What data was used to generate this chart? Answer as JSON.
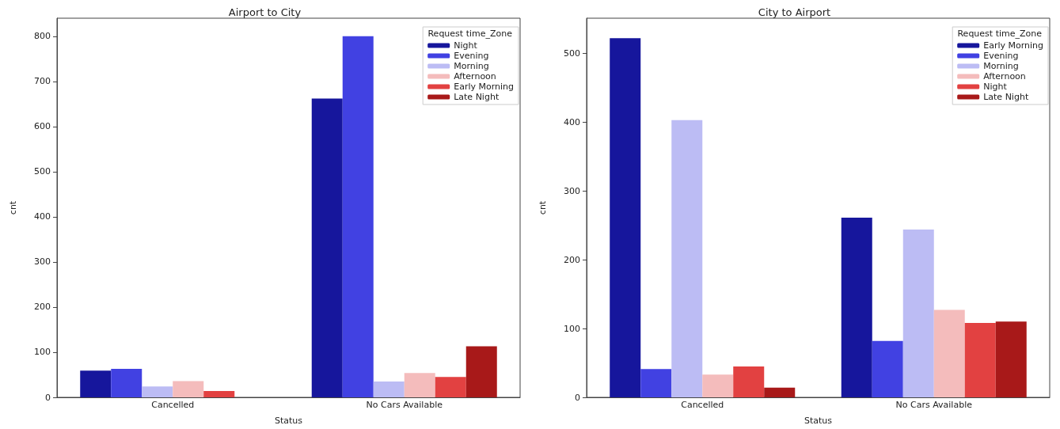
{
  "chart_data": [
    {
      "type": "bar",
      "title": "Airport to City",
      "xlabel": "Status",
      "ylabel": "cnt",
      "legend_title": "Request time_Zone",
      "categories": [
        "Cancelled",
        "No Cars Available"
      ],
      "ylim": [
        0,
        840
      ],
      "yticks": [
        0,
        100,
        200,
        300,
        400,
        500,
        600,
        700,
        800
      ],
      "grid": false,
      "legend": "top right",
      "series": [
        {
          "name": "Night",
          "color": "#16169c",
          "values": [
            59,
            662
          ]
        },
        {
          "name": "Evening",
          "color": "#4141e2",
          "values": [
            63,
            800
          ]
        },
        {
          "name": "Morning",
          "color": "#bcbcf4",
          "values": [
            24,
            35
          ]
        },
        {
          "name": "Afternoon",
          "color": "#f4bcbc",
          "values": [
            36,
            54
          ]
        },
        {
          "name": "Early Morning",
          "color": "#e24141",
          "values": [
            14,
            45
          ]
        },
        {
          "name": "Late Night",
          "color": "#a81919",
          "values": [
            null,
            113
          ]
        }
      ]
    },
    {
      "type": "bar",
      "title": "City to Airport",
      "xlabel": "Status",
      "ylabel": "cnt",
      "legend_title": "Request time_Zone",
      "categories": [
        "Cancelled",
        "No Cars Available"
      ],
      "ylim": [
        0,
        551
      ],
      "yticks": [
        0,
        100,
        200,
        300,
        400,
        500
      ],
      "grid": false,
      "legend": "top right",
      "series": [
        {
          "name": "Early Morning",
          "color": "#16169c",
          "values": [
            522,
            261
          ]
        },
        {
          "name": "Evening",
          "color": "#4141e2",
          "values": [
            41,
            82
          ]
        },
        {
          "name": "Morning",
          "color": "#bcbcf4",
          "values": [
            403,
            244
          ]
        },
        {
          "name": "Afternoon",
          "color": "#f4bcbc",
          "values": [
            33,
            127
          ]
        },
        {
          "name": "Night",
          "color": "#e24141",
          "values": [
            45,
            108
          ]
        },
        {
          "name": "Late Night",
          "color": "#a81919",
          "values": [
            14,
            110
          ]
        }
      ]
    }
  ]
}
